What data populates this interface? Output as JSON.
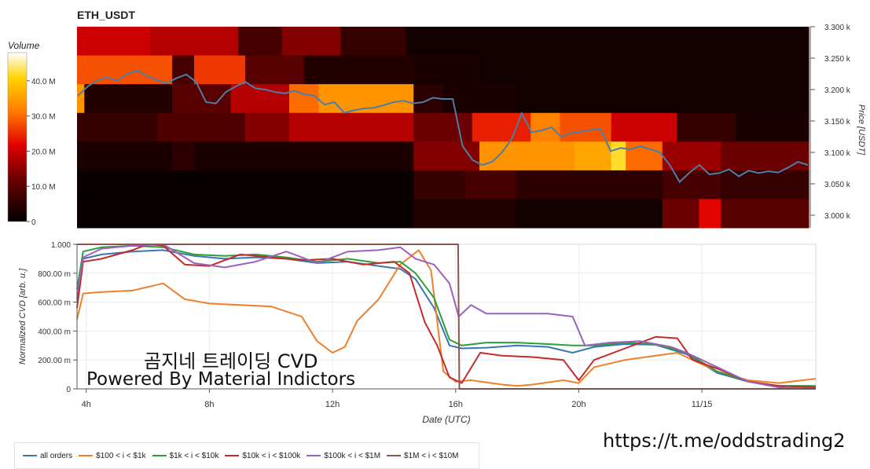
{
  "header": {
    "title": "ETH_USDT"
  },
  "watermark": {
    "line1": "곰지네 트레이딩 CVD",
    "line2": "Powered By Material Indictors",
    "url": "https://t.me/oddstrading2"
  },
  "chart_data": [
    {
      "type": "heatmap",
      "title": "ETH_USDT",
      "ylabel": "Price [USDT]",
      "y_ticks": [
        "3.300 k",
        "3.250 k",
        "3.200 k",
        "3.150 k",
        "3.100 k",
        "3.050 k",
        "3.000 k"
      ],
      "y_tick_values": [
        3300,
        3250,
        3200,
        3150,
        3100,
        3050,
        3000
      ],
      "ylim": [
        2980,
        3300
      ],
      "price_levels": [
        3280,
        3240,
        3200,
        3160,
        3120,
        3080,
        3040,
        3000
      ],
      "colorbar": {
        "title": "Volume",
        "ticks": [
          "40.0 M",
          "30.0 M",
          "20.0 M",
          "10.0 M",
          "0"
        ],
        "tick_values": [
          40,
          30,
          20,
          10,
          0
        ],
        "range": [
          0,
          48
        ]
      },
      "volume_segments": [
        [
          [
            0,
            10,
            20
          ],
          [
            10,
            22,
            18
          ],
          [
            22,
            28,
            8
          ],
          [
            28,
            36,
            14
          ],
          [
            36,
            45,
            6
          ],
          [
            45,
            100,
            2
          ]
        ],
        [
          [
            0,
            13,
            28
          ],
          [
            13,
            16,
            8
          ],
          [
            16,
            23,
            26
          ],
          [
            23,
            31,
            10
          ],
          [
            31,
            46,
            4
          ],
          [
            46,
            55,
            3
          ],
          [
            55,
            100,
            2
          ]
        ],
        [
          [
            0,
            1,
            34
          ],
          [
            1,
            13,
            4
          ],
          [
            13,
            21,
            10
          ],
          [
            21,
            29,
            18
          ],
          [
            29,
            33,
            30
          ],
          [
            33,
            46,
            34
          ],
          [
            46,
            50,
            5
          ],
          [
            50,
            60,
            3
          ],
          [
            60,
            100,
            2
          ]
        ],
        [
          [
            0,
            11,
            6
          ],
          [
            11,
            23,
            9
          ],
          [
            23,
            29,
            14
          ],
          [
            29,
            46,
            18
          ],
          [
            46,
            54,
            12
          ],
          [
            54,
            62,
            24
          ],
          [
            62,
            66,
            32
          ],
          [
            66,
            73,
            28
          ],
          [
            73,
            82,
            20
          ],
          [
            82,
            90,
            6
          ],
          [
            90,
            100,
            3
          ]
        ],
        [
          [
            0,
            13,
            3
          ],
          [
            13,
            16,
            5
          ],
          [
            16,
            46,
            3
          ],
          [
            46,
            55,
            14
          ],
          [
            55,
            68,
            34
          ],
          [
            68,
            73,
            36
          ],
          [
            73,
            75,
            42
          ],
          [
            75,
            80,
            30
          ],
          [
            80,
            88,
            16
          ],
          [
            88,
            100,
            12
          ]
        ],
        [
          [
            0,
            46,
            1
          ],
          [
            46,
            53,
            6
          ],
          [
            53,
            60,
            8
          ],
          [
            60,
            80,
            5
          ],
          [
            80,
            88,
            8
          ],
          [
            88,
            100,
            6
          ]
        ],
        [
          [
            0,
            46,
            1
          ],
          [
            46,
            60,
            4
          ],
          [
            60,
            80,
            2
          ],
          [
            80,
            85,
            12
          ],
          [
            85,
            88,
            22
          ],
          [
            88,
            100,
            10
          ]
        ]
      ],
      "price_series": [
        3190,
        3205,
        3215,
        3220,
        3214,
        3225,
        3230,
        3222,
        3215,
        3210,
        3218,
        3224,
        3212,
        3180,
        3178,
        3196,
        3205,
        3212,
        3202,
        3200,
        3196,
        3194,
        3198,
        3192,
        3190,
        3176,
        3180,
        3163,
        3167,
        3170,
        3171,
        3175,
        3180,
        3182,
        3178,
        3180,
        3187,
        3185,
        3185,
        3110,
        3088,
        3080,
        3085,
        3100,
        3122,
        3162,
        3132,
        3135,
        3140,
        3125,
        3131,
        3133,
        3136,
        3137,
        3102,
        3107,
        3105,
        3110,
        3105,
        3100,
        3080,
        3053,
        3068,
        3080,
        3065,
        3067,
        3073,
        3062,
        3071,
        3067,
        3070,
        3068,
        3076,
        3085,
        3080
      ]
    },
    {
      "type": "line",
      "ylabel": "Normalized CVD [arb. u.]",
      "xlabel": "Date (UTC)",
      "ylim": [
        0,
        1000
      ],
      "y_ticks": [
        "1.000",
        "800.00 m",
        "600.00 m",
        "400.00 m",
        "200.00 m",
        "0"
      ],
      "y_tick_values": [
        1000,
        800,
        600,
        400,
        200,
        0
      ],
      "x_ticks": [
        "4h",
        "8h",
        "12h",
        "16h",
        "20h",
        "11/15"
      ],
      "x_tick_hours": [
        4,
        8,
        12,
        16,
        20,
        24
      ],
      "xlim_hours": [
        3.7,
        27.7
      ],
      "series": [
        {
          "name": "all orders",
          "color": "#3a77b0",
          "points": [
            [
              3.7,
              620
            ],
            [
              3.9,
              900
            ],
            [
              4.5,
              930
            ],
            [
              5.5,
              950
            ],
            [
              6.5,
              960
            ],
            [
              7.5,
              920
            ],
            [
              8.5,
              900
            ],
            [
              9.5,
              910
            ],
            [
              10.5,
              900
            ],
            [
              11.5,
              870
            ],
            [
              12.5,
              880
            ],
            [
              13.5,
              850
            ],
            [
              14.2,
              830
            ],
            [
              14.7,
              760
            ],
            [
              15.3,
              560
            ],
            [
              15.8,
              300
            ],
            [
              16.2,
              280
            ],
            [
              17,
              285
            ],
            [
              18,
              300
            ],
            [
              19,
              290
            ],
            [
              19.8,
              250
            ],
            [
              20.5,
              290
            ],
            [
              21.5,
              310
            ],
            [
              22.5,
              305
            ],
            [
              23.5,
              240
            ],
            [
              24.5,
              110
            ],
            [
              25.5,
              50
            ],
            [
              26.5,
              20
            ],
            [
              27.7,
              20
            ]
          ]
        },
        {
          "name": "$100 < i < $1k",
          "color": "#f07f2a",
          "points": [
            [
              3.7,
              480
            ],
            [
              3.9,
              660
            ],
            [
              4.5,
              670
            ],
            [
              5.5,
              680
            ],
            [
              6.5,
              730
            ],
            [
              7.2,
              620
            ],
            [
              8,
              590
            ],
            [
              9,
              580
            ],
            [
              10,
              570
            ],
            [
              11,
              500
            ],
            [
              11.5,
              330
            ],
            [
              12,
              250
            ],
            [
              12.4,
              290
            ],
            [
              12.8,
              470
            ],
            [
              13.5,
              620
            ],
            [
              14.2,
              860
            ],
            [
              14.8,
              960
            ],
            [
              15.2,
              820
            ],
            [
              15.6,
              120
            ],
            [
              16,
              50
            ],
            [
              16.5,
              60
            ],
            [
              17.5,
              30
            ],
            [
              18,
              20
            ],
            [
              18.5,
              30
            ],
            [
              19.5,
              60
            ],
            [
              20,
              40
            ],
            [
              20.5,
              150
            ],
            [
              21.5,
              200
            ],
            [
              22.5,
              230
            ],
            [
              23.2,
              250
            ],
            [
              23.7,
              200
            ],
            [
              24.5,
              120
            ],
            [
              25.5,
              60
            ],
            [
              26.5,
              40
            ],
            [
              27.7,
              70
            ]
          ]
        },
        {
          "name": "$1k < i < $10k",
          "color": "#2c9e3a",
          "points": [
            [
              3.7,
              690
            ],
            [
              3.9,
              950
            ],
            [
              4.5,
              980
            ],
            [
              5.5,
              990
            ],
            [
              6.5,
              980
            ],
            [
              7.5,
              930
            ],
            [
              8.5,
              920
            ],
            [
              9.5,
              930
            ],
            [
              10.5,
              910
            ],
            [
              11.5,
              880
            ],
            [
              12.5,
              900
            ],
            [
              13.5,
              870
            ],
            [
              14.2,
              880
            ],
            [
              14.7,
              800
            ],
            [
              15.3,
              630
            ],
            [
              15.8,
              340
            ],
            [
              16.2,
              300
            ],
            [
              17,
              320
            ],
            [
              18,
              320
            ],
            [
              19,
              310
            ],
            [
              19.8,
              300
            ],
            [
              20.5,
              300
            ],
            [
              21.5,
              320
            ],
            [
              22.5,
              310
            ],
            [
              23.5,
              250
            ],
            [
              24.5,
              120
            ],
            [
              25.5,
              50
            ],
            [
              26.5,
              20
            ],
            [
              27.7,
              20
            ]
          ]
        },
        {
          "name": "$10k < i < $100k",
          "color": "#c52a2a",
          "points": [
            [
              3.7,
              560
            ],
            [
              3.9,
              880
            ],
            [
              4.5,
              900
            ],
            [
              5.5,
              960
            ],
            [
              6,
              1000
            ],
            [
              6.5,
              990
            ],
            [
              7.2,
              860
            ],
            [
              8,
              850
            ],
            [
              9,
              930
            ],
            [
              10,
              910
            ],
            [
              11,
              890
            ],
            [
              12,
              900
            ],
            [
              13,
              860
            ],
            [
              14,
              880
            ],
            [
              14.5,
              800
            ],
            [
              15,
              460
            ],
            [
              15.4,
              300
            ],
            [
              15.8,
              80
            ],
            [
              16.2,
              40
            ],
            [
              16.8,
              250
            ],
            [
              17.5,
              230
            ],
            [
              18.5,
              220
            ],
            [
              19.5,
              200
            ],
            [
              20,
              60
            ],
            [
              20.5,
              200
            ],
            [
              21.5,
              280
            ],
            [
              22.5,
              360
            ],
            [
              23.2,
              350
            ],
            [
              23.7,
              200
            ],
            [
              24.5,
              140
            ],
            [
              25.5,
              50
            ],
            [
              26.5,
              20
            ],
            [
              27.7,
              10
            ]
          ]
        },
        {
          "name": "$100k < i < $1M",
          "color": "#9a62be",
          "points": [
            [
              3.7,
              650
            ],
            [
              3.9,
              910
            ],
            [
              4.5,
              970
            ],
            [
              5.5,
              990
            ],
            [
              6.5,
              1000
            ],
            [
              7.5,
              870
            ],
            [
              8.5,
              840
            ],
            [
              9.5,
              880
            ],
            [
              10.5,
              950
            ],
            [
              11.5,
              870
            ],
            [
              12.5,
              950
            ],
            [
              13.5,
              960
            ],
            [
              14.2,
              980
            ],
            [
              14.7,
              900
            ],
            [
              15.3,
              860
            ],
            [
              15.8,
              730
            ],
            [
              16.1,
              500
            ],
            [
              16.5,
              580
            ],
            [
              17,
              520
            ],
            [
              18,
              520
            ],
            [
              19,
              520
            ],
            [
              19.8,
              500
            ],
            [
              20.2,
              300
            ],
            [
              21,
              320
            ],
            [
              22,
              330
            ],
            [
              23,
              290
            ],
            [
              23.5,
              250
            ],
            [
              24.5,
              150
            ],
            [
              25.5,
              50
            ],
            [
              26.5,
              10
            ],
            [
              27.7,
              0
            ]
          ]
        },
        {
          "name": "$1M < i < $10M",
          "color": "#8c564b",
          "points": [
            [
              3.7,
              1000
            ],
            [
              16.08,
              1000
            ],
            [
              16.12,
              0
            ],
            [
              27.7,
              0
            ]
          ]
        }
      ]
    }
  ]
}
